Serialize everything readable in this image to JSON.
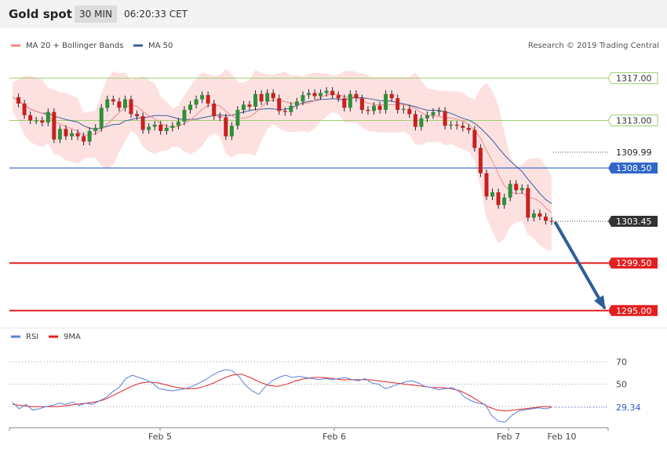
{
  "header": {
    "title": "Gold spot",
    "timeframe": "30 MIN",
    "time": "06:20:33 CET"
  },
  "price_chart": {
    "legend": [
      {
        "label": "MA 20 + Bollinger Bands",
        "color": "#f08a8a"
      },
      {
        "label": "MA 50",
        "color": "#3a5f9c"
      }
    ],
    "credit": "Research © 2019 Trading Central",
    "ylim": [
      1293.5,
      1319.5
    ],
    "levels": [
      {
        "value": 1317.0,
        "label": "1317.00",
        "color": "#9ccf6e",
        "kind": "resistance",
        "label_style": "outline-green"
      },
      {
        "value": 1313.0,
        "label": "1313.00",
        "color": "#9ccf6e",
        "kind": "resistance",
        "label_style": "outline-green"
      },
      {
        "value": 1309.99,
        "label": "1309.99",
        "color": "#555555",
        "kind": "ma50-value",
        "label_style": "plain"
      },
      {
        "value": 1308.5,
        "label": "1308.50",
        "color": "#2f66c8",
        "kind": "pivot",
        "label_style": "filled-blue"
      },
      {
        "value": 1303.45,
        "label": "1303.45",
        "color": "#333333",
        "kind": "last-price",
        "label_style": "filled-dark"
      },
      {
        "value": 1299.5,
        "label": "1299.50",
        "color": "#e0201f",
        "kind": "support",
        "label_style": "filled-red"
      },
      {
        "value": 1295.0,
        "label": "1295.00",
        "color": "#e0201f",
        "kind": "support",
        "label_style": "filled-red"
      }
    ],
    "arrow": {
      "from": 1303.45,
      "to": 1295.0,
      "color": "#2e5d9a"
    },
    "x_labels": [
      "Feb 5",
      "Feb 6",
      "Feb 7",
      "Feb 10"
    ]
  },
  "rsi_panel": {
    "legend": [
      {
        "label": "RSI",
        "color": "#5b7fe0"
      },
      {
        "label": "9MA",
        "color": "#e0201f"
      }
    ],
    "ylim": [
      14,
      84
    ],
    "gridlines": [
      70,
      50,
      30
    ],
    "tick_labels": [
      "70",
      "50"
    ],
    "current": {
      "value": 29.34,
      "label": "29.34"
    }
  },
  "chart_data": {
    "type": "candlestick",
    "title": "Gold spot",
    "x_categories": [
      "Feb 5",
      "Feb 6",
      "Feb 7",
      "Feb 10"
    ],
    "ylim": [
      1293.5,
      1319.5
    ],
    "close_path": [
      1315.2,
      1314.6,
      1313.5,
      1313.0,
      1313.0,
      1312.8,
      1313.8,
      1311.2,
      1312.2,
      1311.5,
      1311.8,
      1311.5,
      1311.0,
      1312.0,
      1312.3,
      1314.2,
      1315.0,
      1314.8,
      1314.2,
      1315.0,
      1313.6,
      1313.4,
      1312.1,
      1312.4,
      1312.6,
      1312.0,
      1312.3,
      1312.5,
      1312.9,
      1314.0,
      1314.5,
      1315.0,
      1315.4,
      1314.6,
      1313.4,
      1313.3,
      1311.5,
      1312.5,
      1314.0,
      1314.5,
      1314.3,
      1315.5,
      1314.8,
      1315.6,
      1315.1,
      1313.9,
      1313.8,
      1314.4,
      1314.8,
      1315.4,
      1315.6,
      1315.3,
      1315.6,
      1315.8,
      1315.4,
      1315.1,
      1314.2,
      1315.5,
      1315.1,
      1314.0,
      1313.9,
      1314.4,
      1314.0,
      1315.5,
      1315.1,
      1314.0,
      1314.1,
      1313.6,
      1312.4,
      1313.2,
      1313.5,
      1313.8,
      1313.9,
      1312.5,
      1312.6,
      1312.5,
      1312.3,
      1312.1,
      1310.4,
      1308.0,
      1305.8,
      1306.2,
      1305.0,
      1305.7,
      1307.0,
      1306.4,
      1306.6,
      1303.8,
      1304.2,
      1303.9,
      1303.5,
      1303.45
    ],
    "overlays": [
      "MA 20",
      "Bollinger Bands",
      "MA 50"
    ],
    "levels": {
      "resistance": [
        1317.0,
        1313.0
      ],
      "pivot": 1308.5,
      "ma50_last": 1309.99,
      "last_price": 1303.45,
      "support": [
        1299.5,
        1295.0
      ]
    },
    "rsi": {
      "ylim": [
        14,
        84
      ],
      "gridlines": [
        70,
        50,
        30
      ],
      "last": 29.34,
      "rsi_path": [
        34,
        28,
        32,
        27,
        28,
        30,
        31,
        33,
        32,
        34,
        31,
        33,
        32,
        35,
        38,
        43,
        47,
        55,
        58,
        56,
        54,
        51,
        46,
        45,
        44,
        45,
        46,
        48,
        51,
        54,
        58,
        61,
        63,
        62,
        57,
        49,
        44,
        41,
        48,
        53,
        56,
        58,
        56,
        57,
        56,
        55,
        54,
        55,
        54,
        55,
        56,
        54,
        53,
        55,
        51,
        50,
        46,
        48,
        50,
        52,
        53,
        51,
        48,
        47,
        45,
        46,
        47,
        44,
        38,
        35,
        33,
        32,
        22,
        17,
        16,
        22,
        26,
        27,
        28,
        29,
        28,
        29.34
      ],
      "ma9_path": [
        32,
        31,
        30,
        30,
        30,
        30,
        31,
        32,
        33,
        34,
        36,
        40,
        44,
        48,
        51,
        52,
        51,
        49,
        47,
        46,
        46,
        48,
        51,
        55,
        58,
        59,
        56,
        52,
        49,
        48,
        50,
        53,
        55,
        56,
        56,
        55,
        54,
        54,
        54,
        54,
        53,
        52,
        51,
        50,
        49,
        48,
        47,
        47,
        46,
        44,
        40,
        35,
        30,
        27,
        26,
        27,
        28,
        29,
        30,
        30
      ]
    }
  }
}
